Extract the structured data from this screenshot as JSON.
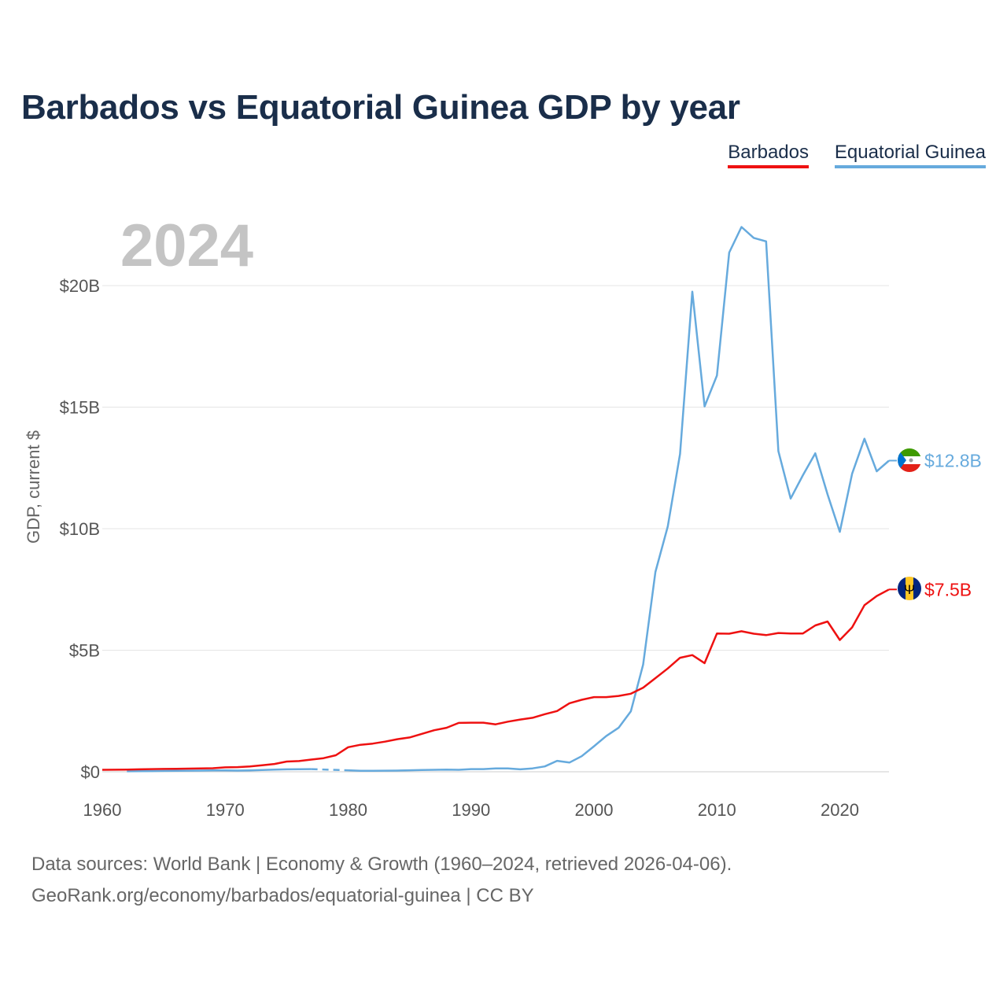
{
  "chart_data": {
    "type": "line",
    "title": "Barbados vs Equatorial Guinea GDP by year",
    "year_label": "2024",
    "ylabel": "GDP, current $",
    "xlabel": "",
    "xlim": [
      1960,
      2024
    ],
    "ylim": [
      0,
      22500000000
    ],
    "x_ticks": [
      1960,
      1970,
      1980,
      1990,
      2000,
      2010,
      2020
    ],
    "x_tick_labels": [
      "1960",
      "1970",
      "1980",
      "1990",
      "2000",
      "2010",
      "2020"
    ],
    "y_ticks": [
      0,
      5000000000,
      10000000000,
      15000000000,
      20000000000
    ],
    "y_tick_labels": [
      "$0",
      "$5B",
      "$10B",
      "$15B",
      "$20B"
    ],
    "grid": true,
    "legend_position": "top-right",
    "series": [
      {
        "name": "Barbados",
        "color": "#ee1111",
        "end_label": "$7.5B",
        "x": [
          1960,
          1961,
          1962,
          1963,
          1964,
          1965,
          1966,
          1967,
          1968,
          1969,
          1970,
          1971,
          1972,
          1973,
          1974,
          1975,
          1976,
          1977,
          1978,
          1979,
          1980,
          1981,
          1982,
          1983,
          1984,
          1985,
          1986,
          1987,
          1988,
          1989,
          1990,
          1991,
          1992,
          1993,
          1994,
          1995,
          1996,
          1997,
          1998,
          1999,
          2000,
          2001,
          2002,
          2003,
          2004,
          2005,
          2006,
          2007,
          2008,
          2009,
          2010,
          2011,
          2012,
          2013,
          2014,
          2015,
          2016,
          2017,
          2018,
          2019,
          2020,
          2021,
          2022,
          2023,
          2024
        ],
        "values": [
          80000000,
          85000000,
          90000000,
          100000000,
          110000000,
          115000000,
          120000000,
          130000000,
          140000000,
          145000000,
          180000000,
          190000000,
          220000000,
          270000000,
          320000000,
          420000000,
          440000000,
          500000000,
          560000000,
          680000000,
          1010000000,
          1110000000,
          1160000000,
          1240000000,
          1340000000,
          1410000000,
          1560000000,
          1710000000,
          1810000000,
          2010000000,
          2020000000,
          2020000000,
          1950000000,
          2060000000,
          2150000000,
          2220000000,
          2370000000,
          2500000000,
          2820000000,
          2960000000,
          3070000000,
          3070000000,
          3120000000,
          3210000000,
          3460000000,
          3850000000,
          4250000000,
          4690000000,
          4800000000,
          4470000000,
          5690000000,
          5680000000,
          5780000000,
          5680000000,
          5620000000,
          5710000000,
          5690000000,
          5690000000,
          6020000000,
          6180000000,
          5420000000,
          5940000000,
          6850000000,
          7230000000,
          7500000000
        ]
      },
      {
        "name": "Equatorial Guinea",
        "color": "#66aadd",
        "end_label": "$12.8B",
        "x": [
          1962,
          1963,
          1964,
          1965,
          1966,
          1967,
          1968,
          1969,
          1970,
          1971,
          1972,
          1973,
          1974,
          1975,
          1976,
          1977,
          1978,
          1979,
          1980,
          1981,
          1982,
          1983,
          1984,
          1985,
          1986,
          1987,
          1988,
          1989,
          1990,
          1991,
          1992,
          1993,
          1994,
          1995,
          1996,
          1997,
          1998,
          1999,
          2000,
          2001,
          2002,
          2003,
          2004,
          2005,
          2006,
          2007,
          2008,
          2009,
          2010,
          2011,
          2012,
          2013,
          2014,
          2015,
          2016,
          2017,
          2018,
          2019,
          2020,
          2021,
          2022,
          2023,
          2024
        ],
        "values": [
          20000000,
          25000000,
          30000000,
          35000000,
          40000000,
          45000000,
          50000000,
          55000000,
          55000000,
          50000000,
          55000000,
          70000000,
          90000000,
          100000000,
          105000000,
          110000000,
          null,
          null,
          60000000,
          40000000,
          40000000,
          45000000,
          50000000,
          60000000,
          70000000,
          80000000,
          90000000,
          80000000,
          110000000,
          110000000,
          140000000,
          140000000,
          100000000,
          140000000,
          220000000,
          450000000,
          380000000,
          640000000,
          1050000000,
          1470000000,
          1810000000,
          2490000000,
          4410000000,
          8220000000,
          10090000000,
          13070000000,
          19750000000,
          15030000000,
          16300000000,
          21360000000,
          22410000000,
          21960000000,
          21820000000,
          13190000000,
          11240000000,
          12200000000,
          13100000000,
          11410000000,
          9870000000,
          12260000000,
          13700000000,
          12360000000,
          12800000000
        ]
      }
    ]
  },
  "legend": {
    "barbados_label": "Barbados",
    "eqg_label": "Equatorial Guinea"
  },
  "source": {
    "line1": "Data sources: World Bank | Economy & Growth (1960–2024, retrieved 2026-04-06).",
    "line2": "GeoRank.org/economy/barbados/equatorial-guinea | CC BY"
  }
}
